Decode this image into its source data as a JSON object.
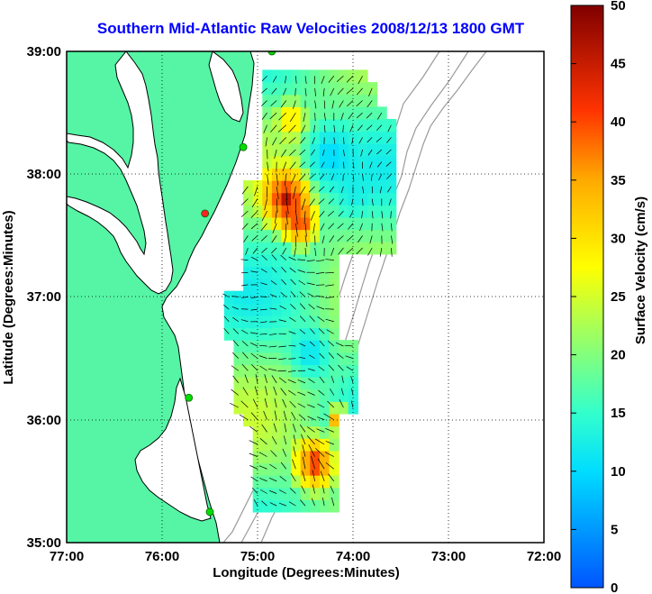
{
  "title": "Southern Mid-Atlantic Raw Velocities 2008/12/13 1800 GMT",
  "xlabel": "Longitude (Degrees:Minutes)",
  "ylabel": "Latitude (Degrees:Minutes)",
  "x_ticks": [
    "77:00",
    "76:00",
    "75:00",
    "74:00",
    "73:00",
    "72:00"
  ],
  "y_ticks": [
    "39:00",
    "38:00",
    "37:00",
    "36:00",
    "35:00"
  ],
  "colorbar": {
    "label": "Surface Velocity (cm/s)",
    "ticks": [
      "50",
      "45",
      "40",
      "35",
      "30",
      "25",
      "20",
      "15",
      "10",
      "5",
      "0"
    ],
    "range": [
      0,
      50
    ]
  },
  "colors": {
    "title": "#0000ff",
    "land": "#55f5a5",
    "coast": "#000000",
    "bathymetry": "#9a9a9a",
    "station": "#00dd00",
    "station_alt": "#ff2222"
  },
  "map": {
    "lon_range": [
      -77,
      -72
    ],
    "lat_range": [
      35,
      39
    ],
    "grid": "dotted",
    "stations": [
      {
        "lon": -74.85,
        "lat": 39.0,
        "type": "green"
      },
      {
        "lon": -75.15,
        "lat": 38.22,
        "type": "green"
      },
      {
        "lon": -75.55,
        "lat": 37.68,
        "type": "red"
      },
      {
        "lon": -75.72,
        "lat": 36.18,
        "type": "green"
      },
      {
        "lon": -75.5,
        "lat": 35.25,
        "type": "green"
      }
    ]
  }
}
